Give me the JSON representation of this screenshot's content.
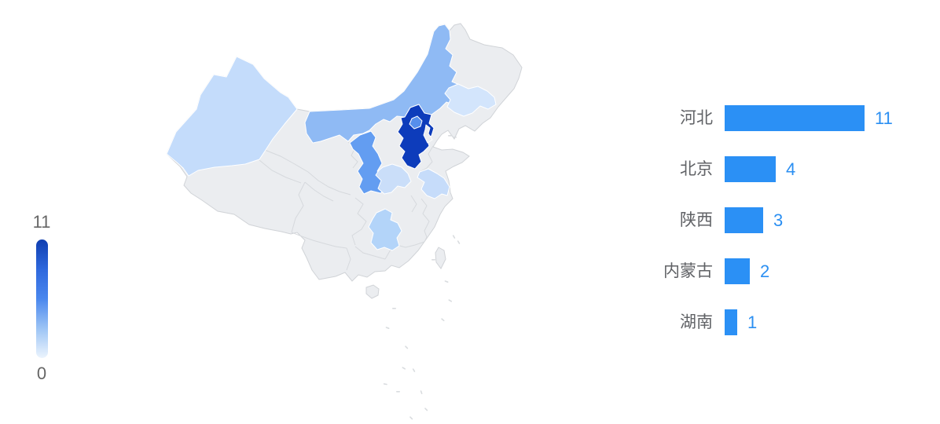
{
  "legend": {
    "max": "11",
    "min": "0",
    "text_color": "#666666",
    "gradient": [
      "#0f3eb0",
      "#2e68dd",
      "#4a87ee",
      "#9cc4f5",
      "#ecf4fd"
    ]
  },
  "map": {
    "base_color": "#ebedf0",
    "outline_color": "#d0d3d7",
    "inner_border_color": "#d6d9dd",
    "islet_color": "#d9dcdf",
    "region_border_color": "#ffffff",
    "regions": {
      "hebei": {
        "color": "#0d3cbb"
      },
      "beijing": {
        "color": "#568fec"
      },
      "shaanxi": {
        "color": "#639df1"
      },
      "neimenggu": {
        "color": "#8fbaf4"
      },
      "hunan": {
        "color": "#b3d4f9"
      },
      "xinjiang": {
        "color": "#c4dcfb"
      },
      "henan": {
        "color": "#cadef9"
      },
      "jiangsu": {
        "color": "#c6dcfa"
      },
      "jilin": {
        "color": "#d3e5fc"
      },
      "tianjin": {
        "color": "#ebedf0"
      }
    }
  },
  "bar_chart": {
    "bar_color": "#2b90f5",
    "value_color": "#2b8ff2",
    "label_color": "#606266",
    "rows": [
      {
        "label": "河北",
        "value": 11
      },
      {
        "label": "北京",
        "value": 4
      },
      {
        "label": "陕西",
        "value": 3
      },
      {
        "label": "内蒙古",
        "value": 2
      },
      {
        "label": "湖南",
        "value": 1
      }
    ]
  },
  "chart_data": [
    {
      "type": "heatmap",
      "subtype": "china-province-choropleth",
      "title": "",
      "visual_map": {
        "min": 0,
        "max": 11,
        "orientation": "vertical",
        "position": "left"
      },
      "series": [
        {
          "name": "河北",
          "value": 11
        },
        {
          "name": "北京",
          "value": 4
        },
        {
          "name": "陕西",
          "value": 3
        },
        {
          "name": "内蒙古",
          "value": 2
        },
        {
          "name": "湖南",
          "value": 1
        }
      ],
      "other_shaded_regions": [
        "新疆",
        "河南",
        "江苏",
        "吉林"
      ]
    },
    {
      "type": "bar",
      "orientation": "horizontal",
      "categories": [
        "河北",
        "北京",
        "陕西",
        "内蒙古",
        "湖南"
      ],
      "values": [
        11,
        4,
        3,
        2,
        1
      ],
      "xlim": [
        0,
        11
      ],
      "grid": false,
      "value_labels": true,
      "legend_position": "none"
    }
  ]
}
